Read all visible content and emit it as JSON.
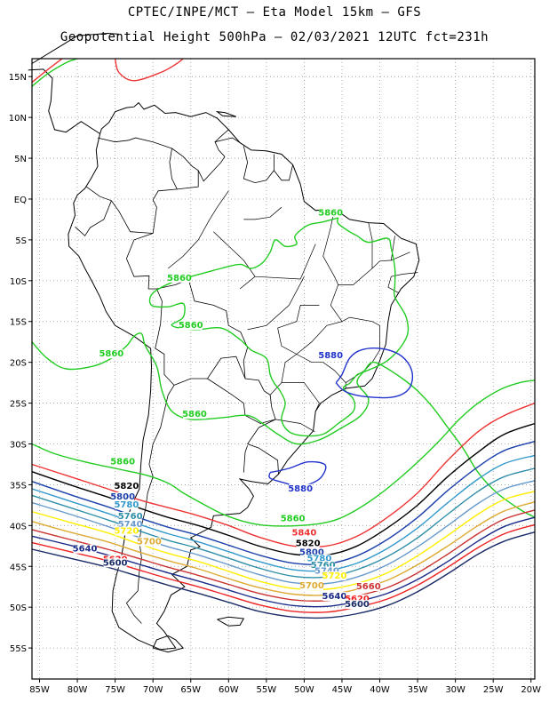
{
  "header": {
    "line1": "CPTEC/INPE/MCT –  Eta Model 15km – GFS",
    "line2": "Geopotential Height 500hPa – 02/03/2021 12UTC fct=231h"
  },
  "axes": {
    "lat_labels": [
      "15N",
      "10N",
      "5N",
      "EQ",
      "5S",
      "10S",
      "15S",
      "20S",
      "25S",
      "30S",
      "35S",
      "40S",
      "45S",
      "50S",
      "55S"
    ],
    "lon_labels": [
      "85W",
      "80W",
      "75W",
      "70W",
      "65W",
      "60W",
      "55W",
      "50W",
      "45W",
      "40W",
      "35W",
      "30W",
      "25W",
      "20W"
    ]
  },
  "colors": {
    "5880": "#2233cc",
    "5860": "#22cc22",
    "5840": "#ee3333",
    "5820": "#000000",
    "5800": "#1a3faa",
    "5780": "#3399cc",
    "5760": "#2f8fa8",
    "5740": "#6699cc",
    "5720": "#ffee00",
    "5700": "#ddaa33",
    "5660": "#cc3333",
    "5640": "#1a2a88",
    "5620": "#ee2222",
    "5600": "#1a2a66"
  },
  "contour_labels": [
    {
      "text": "5880",
      "level": "5880",
      "lon": -46.5,
      "lat": -19.5
    },
    {
      "text": "5880",
      "level": "5880",
      "lon": -50.5,
      "lat": -35.8
    },
    {
      "text": "5860",
      "level": "5860",
      "lon": -46.5,
      "lat": -2.0
    },
    {
      "text": "5860",
      "level": "5860",
      "lon": -66.5,
      "lat": -10.0
    },
    {
      "text": "5860",
      "level": "5860",
      "lon": -65.0,
      "lat": -15.8
    },
    {
      "text": "5860",
      "level": "5860",
      "lon": -75.5,
      "lat": -19.3
    },
    {
      "text": "5860",
      "level": "5860",
      "lon": -64.5,
      "lat": -26.7
    },
    {
      "text": "5860",
      "level": "5860",
      "lon": -74.0,
      "lat": -32.5
    },
    {
      "text": "5860",
      "level": "5860",
      "lon": -51.5,
      "lat": -39.5
    },
    {
      "text": "5840",
      "level": "5840",
      "lon": -50.0,
      "lat": -41.2
    },
    {
      "text": "5820",
      "level": "5820",
      "lon": -73.5,
      "lat": -35.5
    },
    {
      "text": "5820",
      "level": "5820",
      "lon": -49.5,
      "lat": -42.5
    },
    {
      "text": "5800",
      "level": "5800",
      "lon": -74.0,
      "lat": -36.8
    },
    {
      "text": "5800",
      "level": "5800",
      "lon": -49.0,
      "lat": -43.6
    },
    {
      "text": "5780",
      "level": "5780",
      "lon": -73.5,
      "lat": -37.8
    },
    {
      "text": "5780",
      "level": "5780",
      "lon": -48.0,
      "lat": -44.4
    },
    {
      "text": "5760",
      "level": "5760",
      "lon": -73.0,
      "lat": -39.2
    },
    {
      "text": "5760",
      "level": "5760",
      "lon": -47.5,
      "lat": -45.2
    },
    {
      "text": "5740",
      "level": "5740",
      "lon": -73.0,
      "lat": -40.2
    },
    {
      "text": "5740",
      "level": "5740",
      "lon": -47.0,
      "lat": -45.9
    },
    {
      "text": "5720",
      "level": "5720",
      "lon": -73.5,
      "lat": -41.0
    },
    {
      "text": "5720",
      "level": "5720",
      "lon": -46.0,
      "lat": -46.5
    },
    {
      "text": "5700",
      "level": "5700",
      "lon": -70.5,
      "lat": -42.3
    },
    {
      "text": "5700",
      "level": "5700",
      "lon": -49.0,
      "lat": -47.7
    },
    {
      "text": "5660",
      "level": "5660",
      "lon": -41.5,
      "lat": -47.8
    },
    {
      "text": "5640",
      "level": "5640",
      "lon": -79.0,
      "lat": -43.2
    },
    {
      "text": "5640",
      "level": "5640",
      "lon": -46.0,
      "lat": -49.0
    },
    {
      "text": "5620",
      "level": "5620",
      "lon": -75.0,
      "lat": -44.5
    },
    {
      "text": "5620",
      "level": "5620",
      "lon": -43.0,
      "lat": -49.3
    },
    {
      "text": "5600",
      "level": "5600",
      "lon": -75.0,
      "lat": -44.9
    },
    {
      "text": "5600",
      "level": "5600",
      "lon": -43.0,
      "lat": -50.0
    }
  ]
}
